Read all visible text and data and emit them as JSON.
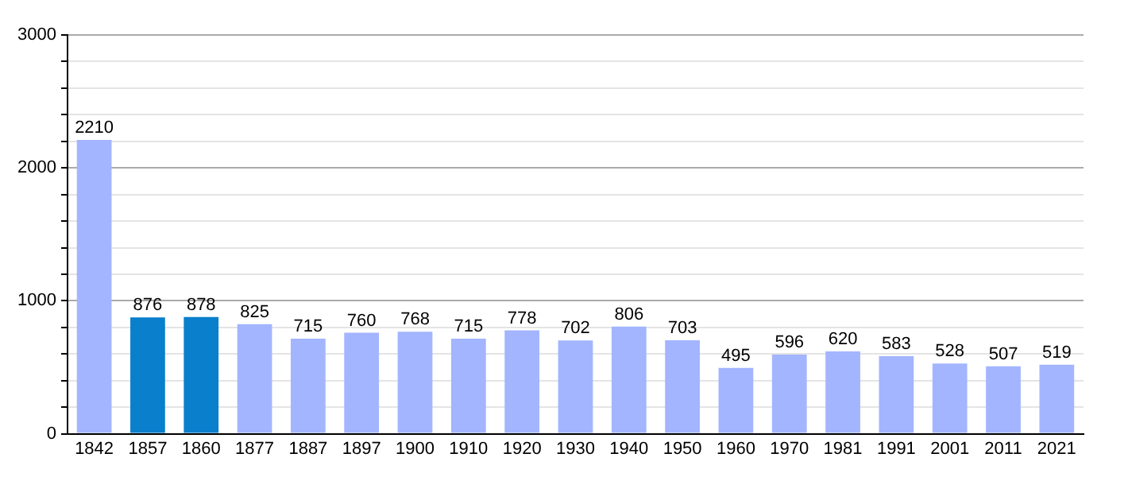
{
  "chart_data": {
    "type": "bar",
    "categories": [
      "1842",
      "1857",
      "1860",
      "1877",
      "1887",
      "1897",
      "1900",
      "1910",
      "1920",
      "1930",
      "1940",
      "1950",
      "1960",
      "1970",
      "1981",
      "1991",
      "2001",
      "2011",
      "2021"
    ],
    "values": [
      2210,
      876,
      878,
      825,
      715,
      760,
      768,
      715,
      778,
      702,
      806,
      703,
      495,
      596,
      620,
      583,
      528,
      507,
      519
    ],
    "colors": [
      "#a3b5ff",
      "#0a7fcc",
      "#0a7fcc",
      "#a3b5ff",
      "#a3b5ff",
      "#a3b5ff",
      "#a3b5ff",
      "#a3b5ff",
      "#a3b5ff",
      "#a3b5ff",
      "#a3b5ff",
      "#a3b5ff",
      "#a3b5ff",
      "#a3b5ff",
      "#a3b5ff",
      "#a3b5ff",
      "#a3b5ff",
      "#a3b5ff",
      "#a3b5ff"
    ],
    "ylim": [
      0,
      3000
    ],
    "yticks": [
      0,
      {
        "value": 200,
        "label": null
      },
      {
        "value": 400,
        "label": null
      },
      {
        "value": 600,
        "label": null
      },
      {
        "value": 800,
        "label": null
      },
      1000,
      {
        "value": 1200,
        "label": null
      },
      {
        "value": 1400,
        "label": null
      },
      {
        "value": 1600,
        "label": null
      },
      {
        "value": 1800,
        "label": null
      },
      2000,
      {
        "value": 2200,
        "label": null
      },
      {
        "value": 2400,
        "label": null
      },
      {
        "value": 2600,
        "label": null
      },
      {
        "value": 2800,
        "label": null
      },
      3000
    ],
    "grid": "y",
    "data_labels": true,
    "legend": false
  }
}
